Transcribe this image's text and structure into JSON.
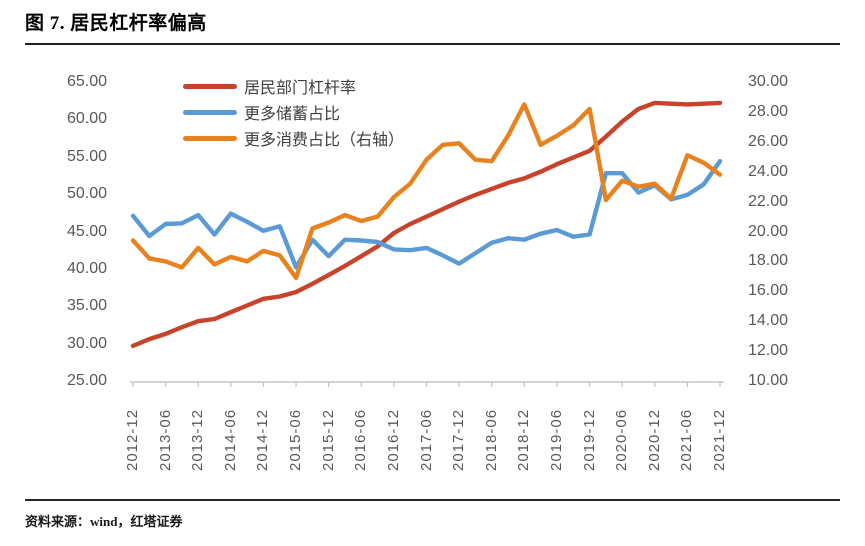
{
  "figure": {
    "title": "图 7. 居民杠杆率偏高",
    "source": "资料来源：wind，红塔证券"
  },
  "colors": {
    "leverage": "#c8432b",
    "saving": "#5b9bd5",
    "consumption": "#e8821f",
    "axis_line": "#c6c6c6",
    "axis_text": "#595959"
  },
  "chart_data": {
    "type": "line",
    "title": "居民杠杆率偏高",
    "grid": false,
    "legend_position": "top-left-inside",
    "x": [
      "2012-12",
      "2013-03",
      "2013-06",
      "2013-09",
      "2013-12",
      "2014-03",
      "2014-06",
      "2014-09",
      "2014-12",
      "2015-03",
      "2015-06",
      "2015-09",
      "2015-12",
      "2016-03",
      "2016-06",
      "2016-09",
      "2016-12",
      "2017-03",
      "2017-06",
      "2017-09",
      "2017-12",
      "2018-03",
      "2018-06",
      "2018-09",
      "2018-12",
      "2019-03",
      "2019-06",
      "2019-09",
      "2019-12",
      "2020-03",
      "2020-06",
      "2020-09",
      "2020-12",
      "2021-03",
      "2021-06",
      "2021-09",
      "2021-12"
    ],
    "x_tick_labels": [
      "2012-12",
      "2013-06",
      "2013-12",
      "2014-06",
      "2014-12",
      "2015-06",
      "2015-12",
      "2016-06",
      "2016-12",
      "2017-06",
      "2017-12",
      "2018-06",
      "2018-12",
      "2019-06",
      "2019-12",
      "2020-06",
      "2020-12",
      "2021-06",
      "2021-12"
    ],
    "left_axis": {
      "min": 25,
      "max": 65,
      "step": 5,
      "tick_labels": [
        "65.00",
        "60.00",
        "55.00",
        "50.00",
        "45.00",
        "40.00",
        "35.00",
        "30.00",
        "25.00"
      ]
    },
    "right_axis": {
      "min": 10,
      "max": 30,
      "step": 2,
      "tick_labels": [
        "30.00",
        "28.00",
        "26.00",
        "24.00",
        "22.00",
        "20.00",
        "18.00",
        "16.00",
        "14.00",
        "12.00",
        "10.00"
      ]
    },
    "series": [
      {
        "name": "居民部门杠杆率",
        "axis": "left",
        "color_key": "leverage",
        "values": [
          29.7,
          30.6,
          31.3,
          32.2,
          33.0,
          33.3,
          34.2,
          35.1,
          36.0,
          36.3,
          36.9,
          38.0,
          39.2,
          40.4,
          41.7,
          43.0,
          44.8,
          46.0,
          47.0,
          48.0,
          49.0,
          49.9,
          50.7,
          51.5,
          52.1,
          53.0,
          54.0,
          54.9,
          55.8,
          57.7,
          59.7,
          61.4,
          62.2,
          62.1,
          62.0,
          62.1,
          62.2
        ]
      },
      {
        "name": "更多储蓄占比",
        "axis": "left",
        "color_key": "saving",
        "values": [
          47.1,
          44.4,
          46.0,
          46.1,
          47.2,
          44.6,
          47.4,
          46.3,
          45.1,
          45.7,
          40.2,
          43.9,
          41.7,
          43.9,
          43.8,
          43.6,
          42.6,
          42.5,
          42.8,
          41.8,
          40.7,
          42.1,
          43.5,
          44.1,
          43.9,
          44.7,
          45.2,
          44.3,
          44.6,
          52.8,
          52.8,
          50.2,
          51.2,
          49.3,
          49.9,
          51.3,
          54.4
        ]
      },
      {
        "name": "更多消费占比（右轴）",
        "axis": "right",
        "color_key": "consumption",
        "values": [
          19.4,
          18.2,
          18.0,
          17.6,
          18.9,
          17.8,
          18.3,
          18.0,
          18.7,
          18.4,
          16.9,
          20.2,
          20.6,
          21.1,
          20.7,
          21.0,
          22.3,
          23.2,
          24.8,
          25.8,
          25.9,
          24.8,
          24.7,
          26.4,
          28.5,
          25.8,
          26.4,
          27.1,
          28.2,
          22.1,
          23.4,
          23.0,
          23.2,
          22.2,
          25.1,
          24.6,
          23.8
        ]
      }
    ]
  }
}
